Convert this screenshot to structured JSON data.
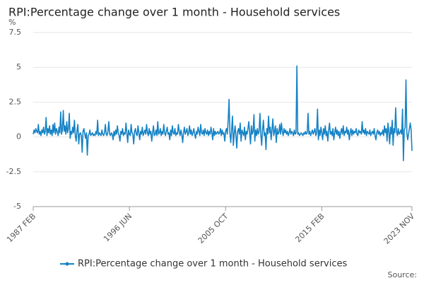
{
  "chart_data": {
    "type": "line",
    "title": "RPI:Percentage change over 1 month - Household services",
    "y_label": "%",
    "source": "Source:",
    "categories": [
      "1987 FEB",
      null,
      null,
      null,
      null,
      null,
      null,
      null,
      null,
      null,
      null,
      null,
      null,
      null,
      null,
      null,
      null,
      null,
      null,
      null,
      null,
      null,
      null,
      null,
      null,
      null,
      null,
      null,
      null,
      null,
      null,
      null,
      null,
      null,
      null,
      null,
      null,
      null,
      null,
      null,
      null,
      null,
      null,
      null,
      null,
      null,
      null,
      null,
      null,
      null,
      null,
      null,
      null,
      null,
      null,
      null,
      null,
      null,
      null,
      null,
      null,
      null,
      null,
      null,
      null,
      null,
      null,
      null,
      null,
      null,
      null,
      null,
      null,
      null,
      null,
      null,
      null,
      null,
      null,
      null,
      null,
      null,
      null,
      null,
      null,
      null,
      null,
      null,
      null,
      null,
      null,
      null,
      null,
      null,
      null,
      null,
      null,
      null,
      null,
      null,
      null,
      null,
      null,
      null,
      null,
      null,
      null,
      null,
      null,
      null,
      null,
      null,
      "1996 JUN",
      null,
      null,
      null,
      null,
      null,
      null,
      null,
      null,
      null,
      null,
      null,
      null,
      null,
      null,
      null,
      null,
      null,
      null,
      null,
      null,
      null,
      null,
      null,
      null,
      null,
      null,
      null,
      null,
      null,
      null,
      null,
      null,
      null,
      null,
      null,
      null,
      null,
      null,
      null,
      null,
      null,
      null,
      null,
      null,
      null,
      null,
      null,
      null,
      null,
      null,
      null,
      null,
      null,
      null,
      null,
      null,
      null,
      null,
      null,
      null,
      null,
      null,
      null,
      null,
      null,
      null,
      null,
      null,
      null,
      null,
      null,
      null,
      null,
      null,
      null,
      null,
      null,
      null,
      null,
      null,
      null,
      null,
      null,
      null,
      null,
      null,
      null,
      null,
      null,
      null,
      null,
      null,
      null,
      null,
      null,
      null,
      null,
      null,
      null,
      null,
      null,
      null,
      null,
      null,
      null,
      null,
      null,
      null,
      null,
      null,
      null,
      "2005 OCT",
      null,
      null,
      null,
      null,
      null,
      null,
      null,
      null,
      null,
      null,
      null,
      null,
      null,
      null,
      null,
      null,
      null,
      null,
      null,
      null,
      null,
      null,
      null,
      null,
      null,
      null,
      null,
      null,
      null,
      null,
      null,
      null,
      null,
      null,
      null,
      null,
      null,
      null,
      null,
      null,
      null,
      null,
      null,
      null,
      null,
      null,
      null,
      null,
      null,
      null,
      null,
      null,
      null,
      null,
      null,
      null,
      null,
      null,
      null,
      null,
      null,
      null,
      null,
      null,
      null,
      null,
      null,
      null,
      null,
      null,
      null,
      null,
      null,
      null,
      null,
      null,
      null,
      null,
      null,
      null,
      null,
      null,
      null,
      null,
      null,
      null,
      null,
      null,
      null,
      null,
      null,
      null,
      null,
      null,
      null,
      null,
      null,
      null,
      null,
      null,
      null,
      null,
      null,
      null,
      null,
      null,
      null,
      null,
      null,
      null,
      null,
      "2015 FEB",
      null,
      null,
      null,
      null,
      null,
      null,
      null,
      null,
      null,
      null,
      null,
      null,
      null,
      null,
      null,
      null,
      null,
      null,
      null,
      null,
      null,
      null,
      null,
      null,
      null,
      null,
      null,
      null,
      null,
      null,
      null,
      null,
      null,
      null,
      null,
      null,
      null,
      null,
      null,
      null,
      null,
      null,
      null,
      null,
      null,
      null,
      null,
      null,
      null,
      null,
      null,
      null,
      null,
      null,
      null,
      null,
      null,
      null,
      null,
      null,
      null,
      null,
      null,
      null,
      null,
      null,
      null,
      null,
      null,
      null,
      null,
      null,
      null,
      null,
      null,
      null,
      null,
      null,
      null,
      null,
      null,
      null,
      null,
      null,
      null,
      null,
      null,
      null,
      null,
      null,
      null,
      null,
      null,
      null,
      null,
      null,
      null,
      null,
      null,
      null,
      null,
      null,
      null,
      null,
      "2023 NOV"
    ],
    "series": [
      {
        "name": "RPI:Percentage change over 1 month - Household services",
        "color": "#1582c5",
        "values": [
          0.2,
          0.5,
          0.3,
          0.6,
          0.4,
          0.3,
          0.9,
          0.2,
          0.4,
          0.1,
          0.5,
          0.3,
          0.7,
          0.2,
          0.4,
          1.4,
          0.1,
          0.6,
          0.3,
          0.8,
          0.2,
          0.5,
          0.1,
          0.9,
          0.3,
          1.0,
          0.2,
          0.6,
          0.4,
          0.1,
          0.7,
          0.3,
          1.8,
          0.2,
          0.5,
          1.9,
          0.4,
          0.8,
          0.2,
          1.1,
          0.3,
          0.6,
          1.7,
          -0.1,
          0.4,
          0.2,
          0.7,
          0.3,
          1.2,
          0.1,
          -0.3,
          0.5,
          0.9,
          -0.5,
          0.2,
          0.3,
          0.1,
          -1.1,
          0.4,
          0.6,
          0.2,
          -0.1,
          0.3,
          -1.3,
          0.1,
          0.2,
          0.5,
          0.1,
          0.2,
          0.3,
          0.1,
          0.2,
          0.1,
          0.4,
          0.2,
          1.2,
          0.1,
          0.3,
          0.2,
          0.1,
          0.5,
          0.2,
          0.1,
          0.3,
          0.9,
          0.2,
          0.1,
          0.4,
          1.1,
          0.2,
          0.1,
          0.3,
          0.2,
          -0.2,
          0.4,
          0.1,
          0.5,
          0.2,
          0.8,
          0.3,
          0.1,
          -0.3,
          0.4,
          0.2,
          0.6,
          0.1,
          0.3,
          0.2,
          1.0,
          0.3,
          -0.4,
          0.5,
          0.2,
          0.1,
          0.9,
          0.3,
          0.2,
          -0.5,
          0.4,
          0.6,
          0.2,
          0.1,
          0.8,
          0.3,
          -0.2,
          0.4,
          0.2,
          0.7,
          0.1,
          0.3,
          0.5,
          0.2,
          0.9,
          0.3,
          0.1,
          0.6,
          0.2,
          0.4,
          -0.3,
          0.3,
          0.8,
          0.1,
          0.2,
          0.5,
          0.1,
          1.1,
          0.2,
          0.3,
          0.6,
          0.1,
          0.4,
          0.2,
          0.9,
          0.3,
          0.1,
          0.4,
          0.7,
          0.2,
          0.3,
          -0.2,
          0.5,
          0.1,
          0.8,
          0.3,
          0.2,
          0.6,
          0.1,
          0.3,
          0.2,
          0.9,
          0.4,
          0.1,
          0.5,
          0.2,
          -0.4,
          0.3,
          0.7,
          0.2,
          0.4,
          0.6,
          0.1,
          0.3,
          0.8,
          0.2,
          0.5,
          0.1,
          0.3,
          0.6,
          0.2,
          -0.1,
          0.4,
          0.2,
          0.7,
          0.4,
          0.1,
          0.9,
          0.3,
          0.2,
          0.5,
          0.1,
          0.6,
          0.3,
          0.2,
          0.5,
          0.1,
          0.4,
          0.2,
          0.7,
          0.3,
          -0.2,
          0.6,
          0.1,
          0.4,
          0.2,
          0.3,
          0.4,
          0.2,
          0.3,
          0.6,
          0.1,
          0.5,
          0.2,
          0.3,
          -0.3,
          0.4,
          0.6,
          0.2,
          1.2,
          2.7,
          0.3,
          -0.4,
          0.5,
          1.5,
          -0.6,
          0.2,
          0.8,
          0.1,
          -0.8,
          0.4,
          0.6,
          0.2,
          1.0,
          -0.3,
          0.5,
          0.3,
          0.1,
          0.7,
          -0.2,
          0.4,
          0.2,
          0.6,
          1.1,
          0.3,
          -0.5,
          0.8,
          0.2,
          0.4,
          1.6,
          -0.3,
          0.5,
          0.1,
          0.6,
          0.2,
          0.4,
          1.7,
          0.2,
          -0.6,
          0.5,
          1.2,
          0.1,
          0.3,
          -0.9,
          0.6,
          0.2,
          1.5,
          0.3,
          0.7,
          -0.2,
          0.5,
          1.3,
          0.1,
          0.4,
          0.8,
          -0.4,
          0.6,
          0.2,
          0.3,
          0.9,
          0.2,
          1.0,
          0.4,
          0.1,
          0.6,
          0.3,
          0.5,
          0.2,
          0.4,
          0.1,
          0.3,
          0.6,
          0.2,
          0.4,
          0.3,
          0.1,
          0.5,
          0.2,
          0.3,
          5.1,
          0.2,
          0.3,
          0.1,
          0.2,
          0.3,
          0.2,
          0.1,
          0.3,
          0.2,
          0.4,
          0.2,
          0.3,
          1.7,
          0.2,
          0.4,
          0.1,
          0.3,
          0.5,
          0.2,
          0.4,
          0.6,
          0.1,
          0.3,
          2.0,
          -0.2,
          0.5,
          0.1,
          0.7,
          0.3,
          -0.2,
          0.6,
          0.2,
          0.8,
          0.1,
          0.4,
          -0.3,
          0.5,
          1.0,
          0.2,
          0.4,
          0.1,
          0.6,
          -0.2,
          0.3,
          0.7,
          0.2,
          0.5,
          0.1,
          0.4,
          -0.1,
          0.3,
          0.6,
          0.2,
          0.8,
          0.1,
          0.4,
          0.3,
          0.7,
          0.2,
          0.5,
          -0.2,
          0.3,
          0.6,
          0.1,
          0.5,
          0.2,
          0.4,
          0.3,
          0.6,
          0.2,
          0.1,
          0.5,
          0.3,
          0.4,
          0.2,
          1.1,
          0.3,
          0.5,
          0.2,
          0.6,
          0.1,
          0.4,
          0.3,
          0.2,
          0.5,
          0.1,
          0.3,
          0.4,
          0.2,
          0.6,
          0.1,
          -0.2,
          0.3,
          0.5,
          0.2,
          0.4,
          0.1,
          0.3,
          0.2,
          0.5,
          0.1,
          0.8,
          0.3,
          0.6,
          -0.3,
          1.0,
          0.4,
          -0.5,
          0.7,
          0.2,
          1.2,
          -0.6,
          0.6,
          0.3,
          2.1,
          0.4,
          0.1,
          0.6,
          0.2,
          0.3,
          0.5,
          0.2,
          2.0,
          -1.7,
          0.5,
          0.7,
          4.1,
          0.3,
          -0.2,
          0.2,
          0.6,
          1.0,
          0.5,
          -1.0
        ]
      }
    ],
    "ylim": [
      -5,
      7.5
    ],
    "yticks": [
      -5,
      -2.5,
      0,
      2.5,
      5,
      7.5
    ],
    "grid": true,
    "legend": "bottom"
  }
}
